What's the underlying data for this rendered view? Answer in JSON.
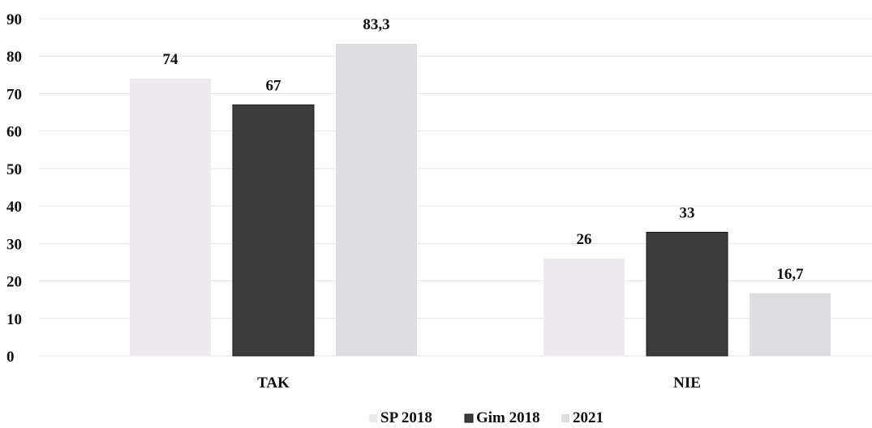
{
  "chart_data": {
    "type": "bar",
    "categories": [
      "TAK",
      "NIE"
    ],
    "series": [
      {
        "name": "SP 2018",
        "values": [
          74,
          26
        ],
        "labels": [
          "74",
          "26"
        ],
        "color": "#eeeaf0"
      },
      {
        "name": "Gim 2018",
        "values": [
          67,
          33
        ],
        "labels": [
          "67",
          "33"
        ],
        "color": "#3c3c3c"
      },
      {
        "name": "2021",
        "values": [
          83.3,
          16.7
        ],
        "labels": [
          "83,3",
          "16,7"
        ],
        "color": "#dedee2"
      }
    ],
    "yticks": [
      "0",
      "10",
      "20",
      "30",
      "40",
      "50",
      "60",
      "70",
      "80",
      "90"
    ],
    "ylim": [
      0,
      90
    ],
    "grid": true,
    "legend": "bottom"
  }
}
